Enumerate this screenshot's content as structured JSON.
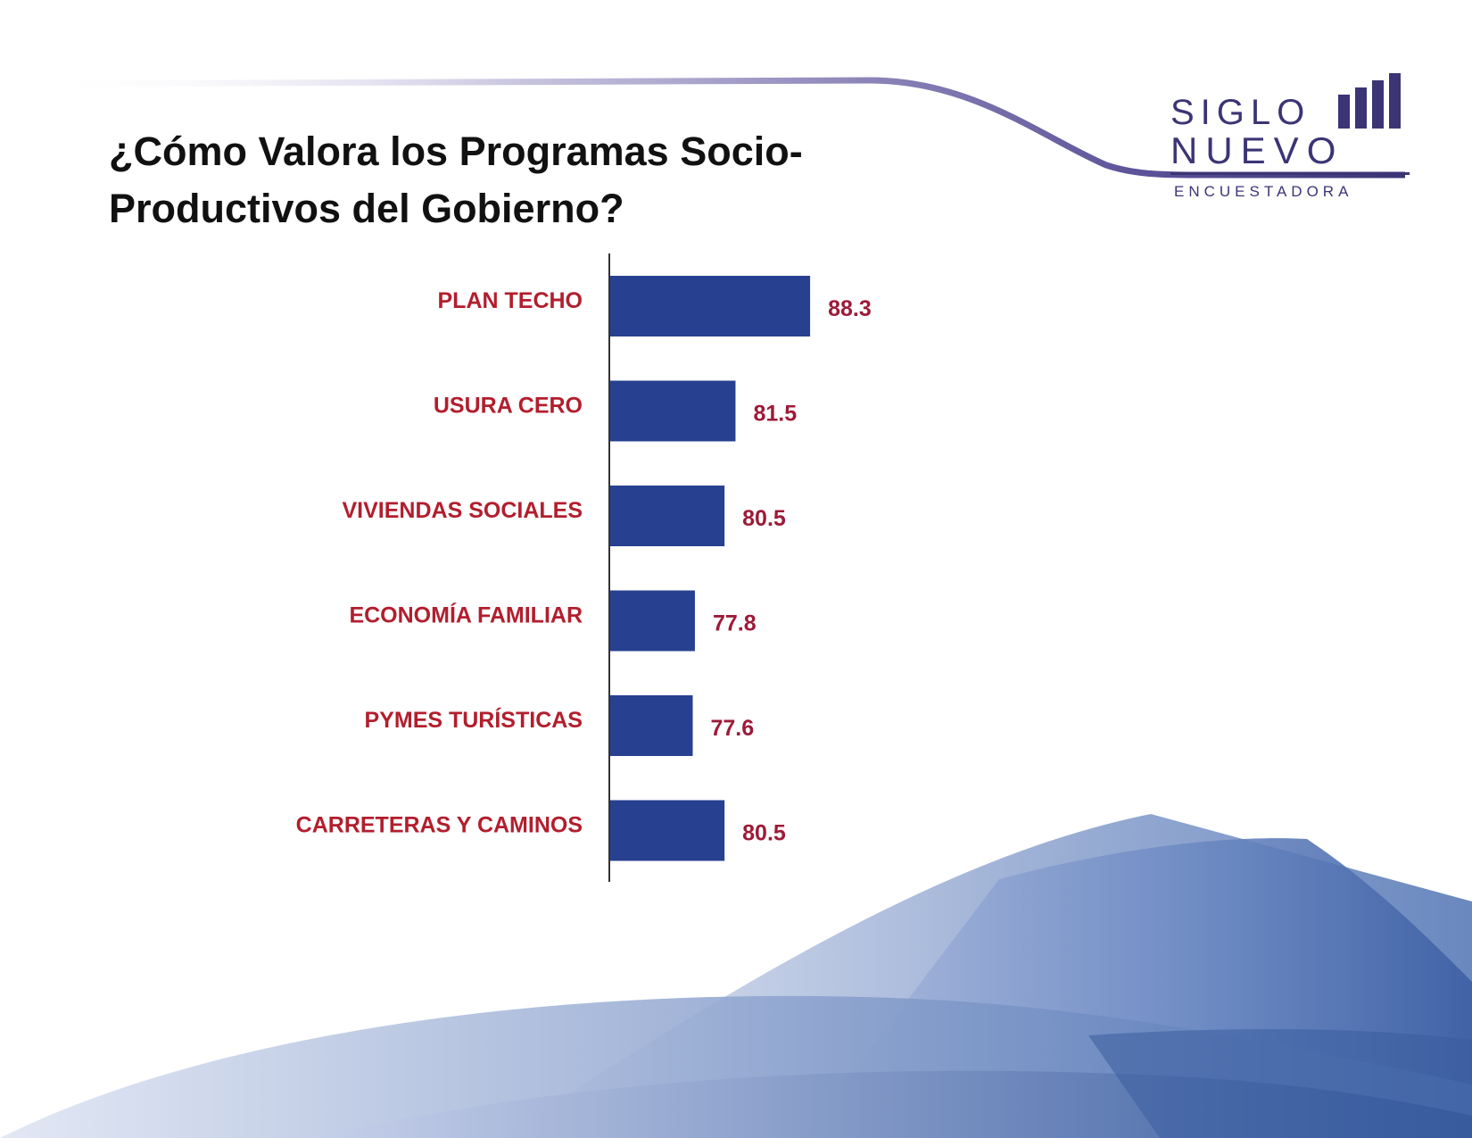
{
  "title_lines": [
    "¿Cómo Valora los Programas Socio-",
    "Productivos del Gobierno?"
  ],
  "logo": {
    "line1": "SIGLO",
    "line2": "NUEVO",
    "line3": "ENCUESTADORA",
    "color": "#3b3575"
  },
  "colors": {
    "bar": "#27408f",
    "category_text": "#b21e2d",
    "value_text": "#9c1b38"
  },
  "chart_data": {
    "type": "bar",
    "orientation": "horizontal",
    "title": "¿Cómo Valora los Programas Socio-Productivos del Gobierno?",
    "categories": [
      "PLAN TECHO",
      "USURA CERO",
      "VIVIENDAS SOCIALES",
      "ECONOMÍA FAMILIAR",
      "PYMES TURÍSTICAS",
      "CARRETERAS Y CAMINOS"
    ],
    "values": [
      88.3,
      81.5,
      80.5,
      77.8,
      77.6,
      80.5
    ],
    "value_labels": [
      "88.3",
      "81.5",
      "80.5",
      "77.8",
      "77.6",
      "80.5"
    ],
    "xlim": [
      70,
      100
    ],
    "grid": false,
    "legend": "none"
  }
}
